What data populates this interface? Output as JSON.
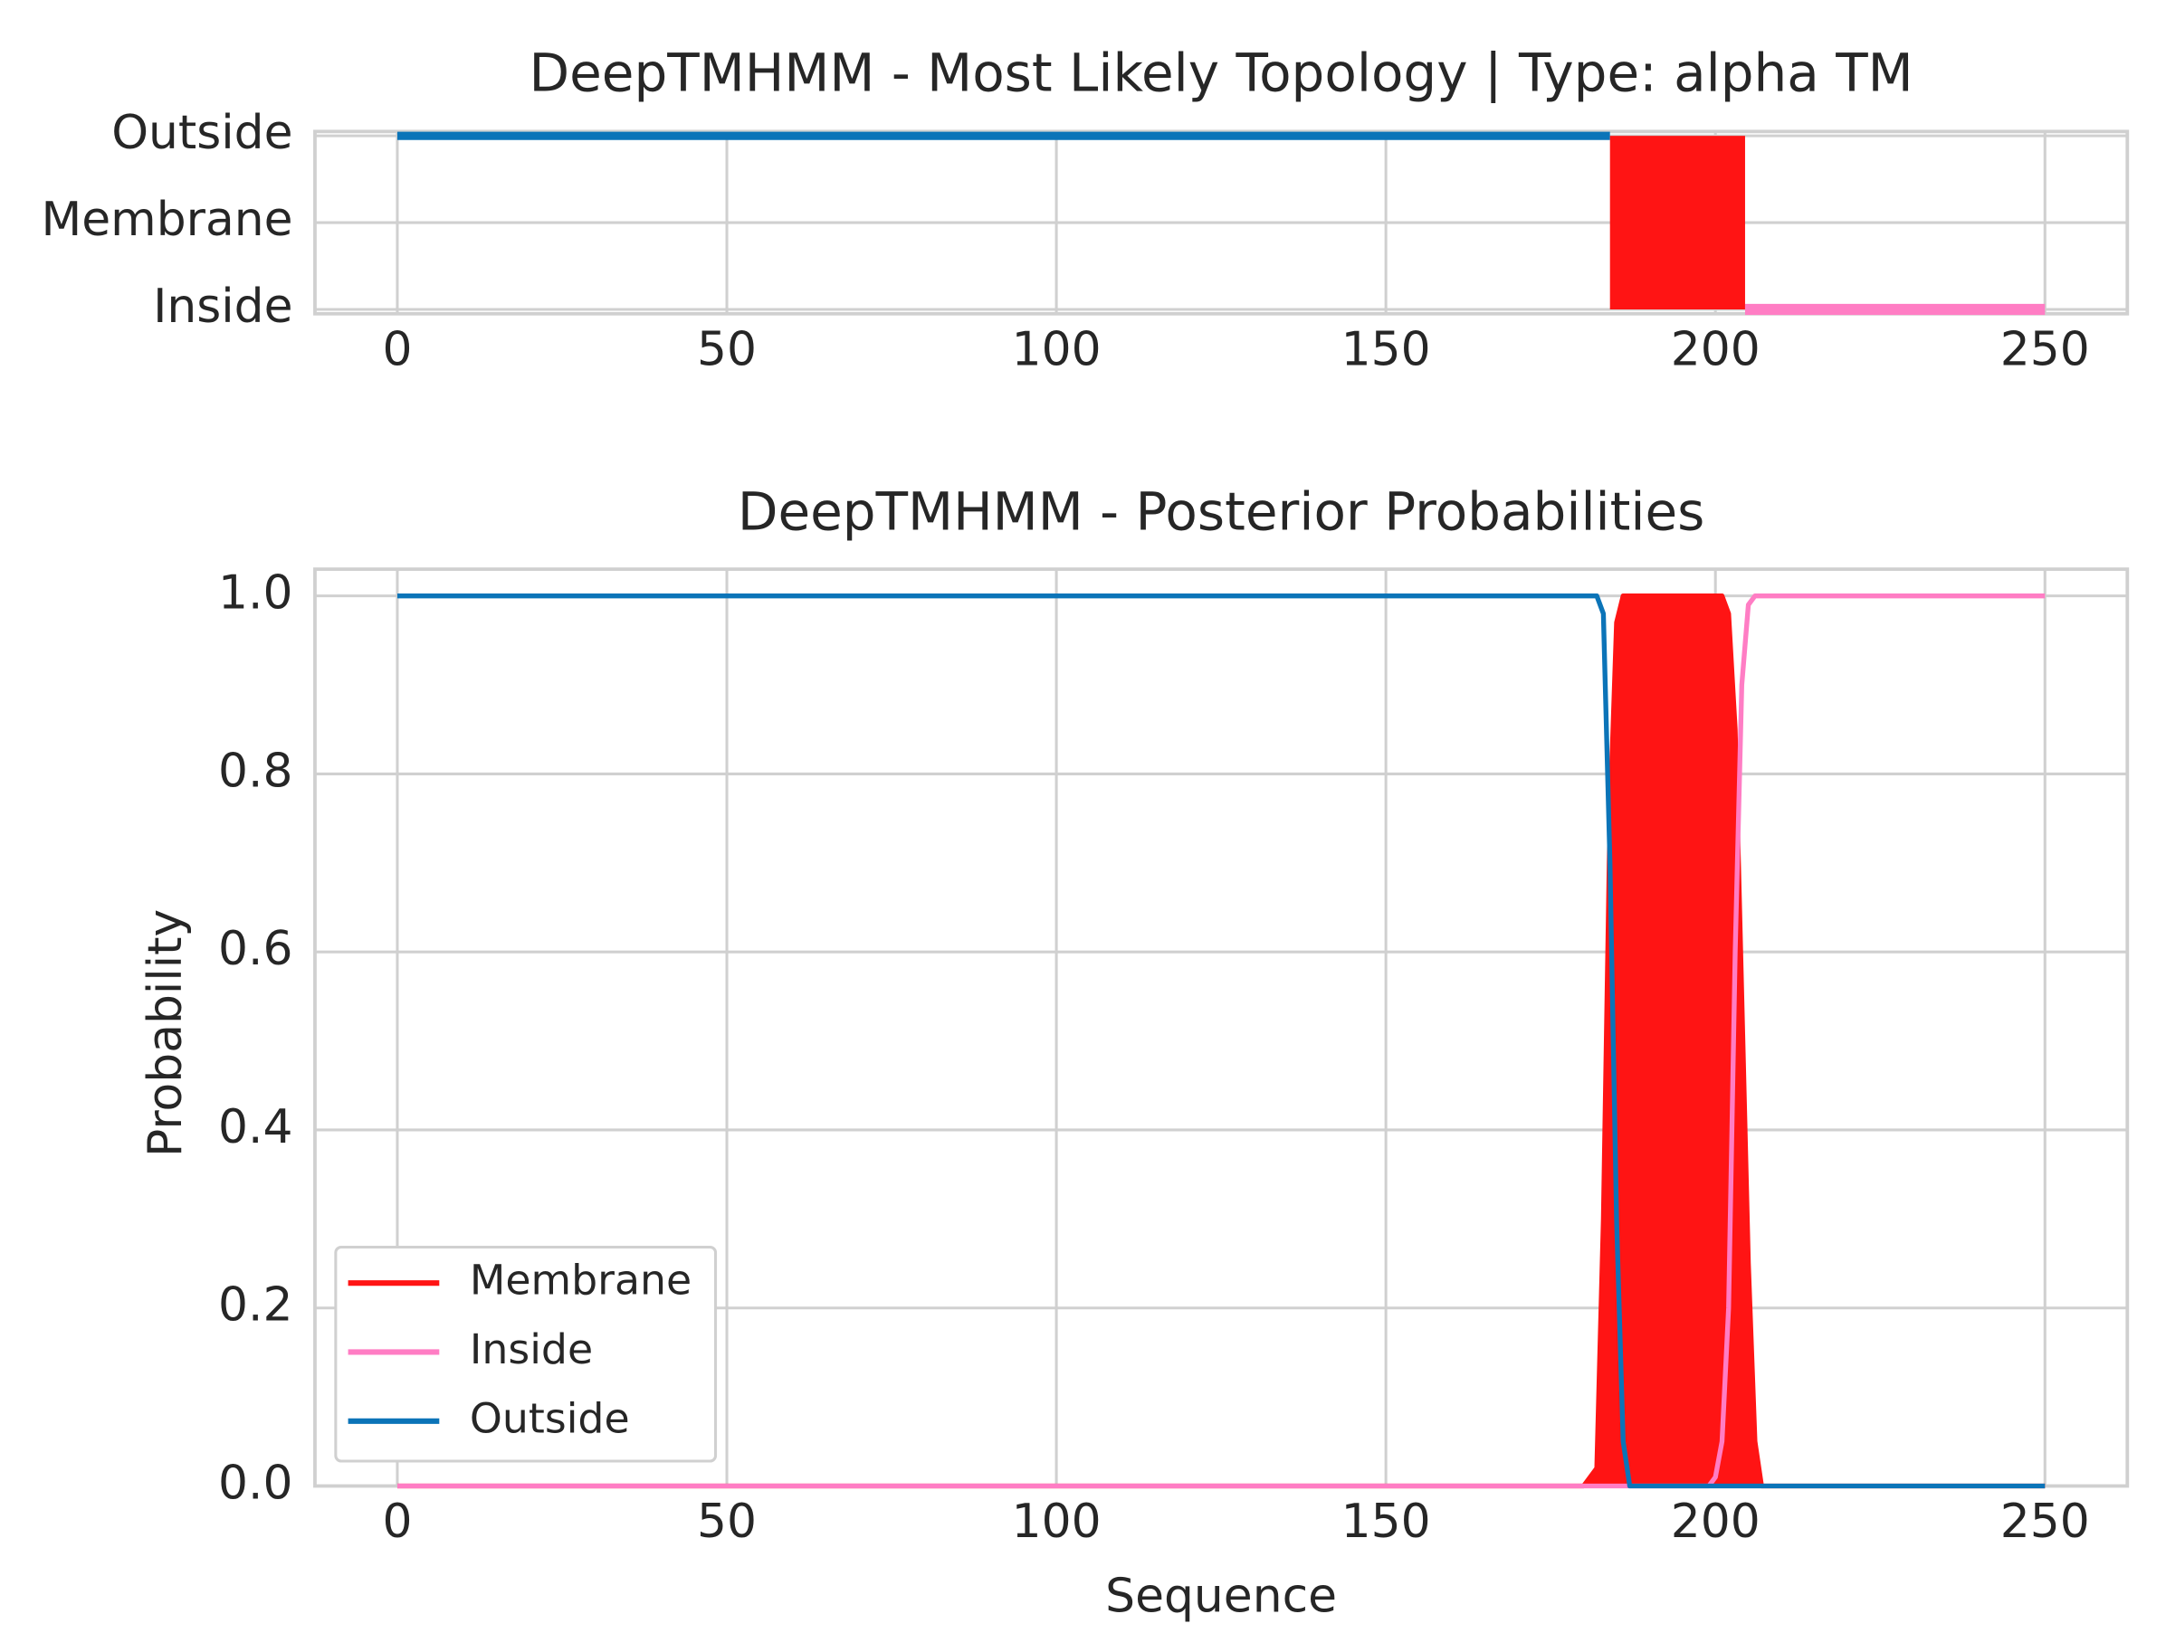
{
  "chart_data": [
    {
      "type": "topology",
      "title": "DeepTMHMM - Most Likely Topology | Type: alpha TM",
      "categories": [
        "Inside",
        "Membrane",
        "Outside"
      ],
      "segments": [
        {
          "start": 0,
          "end": 184,
          "state": 2,
          "color": "#0b74b8",
          "fill": false
        },
        {
          "start": 184,
          "end": 204.5,
          "state": 1,
          "color": "#ff1414",
          "fill": true
        },
        {
          "start": 204.5,
          "end": 250,
          "state": 0,
          "color": "#ff7dc4",
          "fill": false
        }
      ],
      "xlim": [
        -12.5,
        262.5
      ],
      "xticks": [
        0,
        50,
        100,
        150,
        200,
        250
      ],
      "ylim": [
        -0.05,
        2.05
      ],
      "grid": true
    },
    {
      "type": "line",
      "title": "DeepTMHMM - Posterior Probabilities",
      "xlabel": "Sequence",
      "ylabel": "Probability",
      "x": [
        0,
        180,
        182,
        183,
        184,
        185,
        186,
        187,
        199,
        200,
        201,
        202,
        203,
        204,
        205,
        206,
        207,
        250
      ],
      "series": [
        {
          "name": "Membrane",
          "color": "#ff1414",
          "fill": true,
          "values": [
            0,
            0,
            0.02,
            0.3,
            0.75,
            0.97,
            1,
            1,
            1,
            1,
            1,
            0.98,
            0.85,
            0.55,
            0.25,
            0.05,
            0,
            0
          ]
        },
        {
          "name": "Inside",
          "color": "#ff7dc4",
          "fill": false,
          "values": [
            0,
            0,
            0,
            0,
            0,
            0,
            0,
            0,
            0,
            0.01,
            0.05,
            0.2,
            0.6,
            0.9,
            0.99,
            1,
            1,
            1
          ]
        },
        {
          "name": "Outside",
          "color": "#0b74b8",
          "fill": false,
          "values": [
            1,
            1,
            1,
            0.98,
            0.7,
            0.3,
            0.05,
            0,
            0,
            0,
            0,
            0,
            0,
            0,
            0,
            0,
            0,
            0
          ]
        }
      ],
      "xlim": [
        -12.5,
        262.5
      ],
      "xticks": [
        0,
        50,
        100,
        150,
        200,
        250
      ],
      "ylim": [
        0,
        1.03
      ],
      "yticks": [
        {
          "value": 0,
          "label": "0.0"
        },
        0.2,
        0.4,
        0.6,
        0.8,
        {
          "value": 1,
          "label": "1.0"
        }
      ],
      "grid": true,
      "legend": "lower left"
    }
  ]
}
